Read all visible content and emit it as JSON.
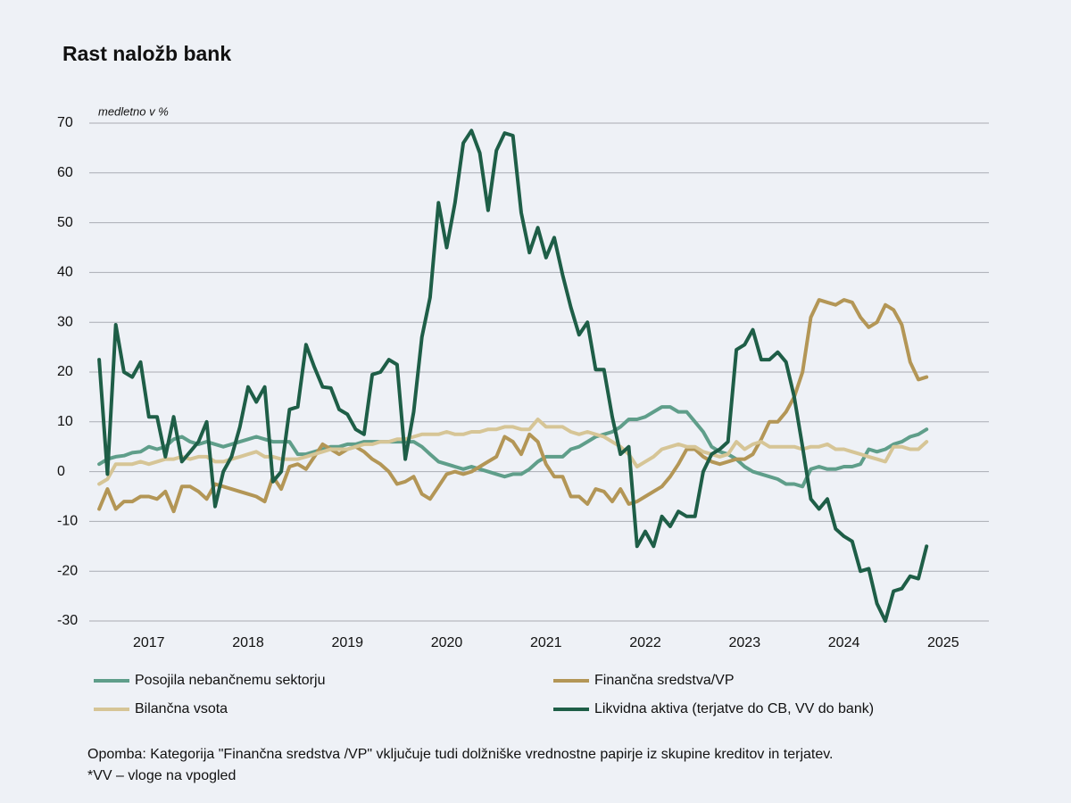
{
  "chart_data": {
    "type": "line",
    "title": "Rast naložb bank",
    "y_label": "medletno v %",
    "notes": [
      "Opomba: Kategorija \"Finančna sredstva /VP\" vključuje tudi dolžniške vrednostne papirje iz skupine kreditov in terjatev.",
      "*VV – vloge na vpogled"
    ],
    "xlim": [
      2016.4,
      2025.46
    ],
    "xticks": [
      2017,
      2018,
      2019,
      2020,
      2021,
      2022,
      2023,
      2024,
      2025
    ],
    "ylim": [
      -30,
      70
    ],
    "yticks": [
      -30,
      -20,
      -10,
      0,
      10,
      20,
      30,
      40,
      50,
      60,
      70
    ],
    "grid": true,
    "x": [
      2016.5,
      2016.583,
      2016.667,
      2016.75,
      2016.833,
      2016.917,
      2017,
      2017.083,
      2017.167,
      2017.25,
      2017.333,
      2017.417,
      2017.5,
      2017.583,
      2017.667,
      2017.75,
      2017.833,
      2017.917,
      2018,
      2018.083,
      2018.167,
      2018.25,
      2018.333,
      2018.417,
      2018.5,
      2018.583,
      2018.667,
      2018.75,
      2018.833,
      2018.917,
      2019,
      2019.083,
      2019.167,
      2019.25,
      2019.333,
      2019.417,
      2019.5,
      2019.583,
      2019.667,
      2019.75,
      2019.833,
      2019.917,
      2020,
      2020.083,
      2020.167,
      2020.25,
      2020.333,
      2020.417,
      2020.5,
      2020.583,
      2020.667,
      2020.75,
      2020.833,
      2020.917,
      2021,
      2021.083,
      2021.167,
      2021.25,
      2021.333,
      2021.417,
      2021.5,
      2021.583,
      2021.667,
      2021.75,
      2021.833,
      2021.917,
      2022,
      2022.083,
      2022.167,
      2022.25,
      2022.333,
      2022.417,
      2022.5,
      2022.583,
      2022.667,
      2022.75,
      2022.833,
      2022.917,
      2023,
      2023.083,
      2023.167,
      2023.25,
      2023.333,
      2023.417,
      2023.5,
      2023.583,
      2023.667,
      2023.75,
      2023.833,
      2023.917,
      2024,
      2024.083,
      2024.167,
      2024.25,
      2024.333,
      2024.417,
      2024.5,
      2024.583,
      2024.667,
      2024.75,
      2024.833
    ],
    "series": [
      {
        "name": "Posojila nebančnemu sektorju",
        "color": "#5f9e8a",
        "values": [
          1.5,
          2.5,
          3,
          3.2,
          3.8,
          4,
          5,
          4.5,
          5,
          6.5,
          7,
          6,
          5.5,
          6,
          5.5,
          5,
          5.5,
          6,
          6.5,
          7,
          6.5,
          6,
          6,
          6,
          3.5,
          3.5,
          4,
          4.5,
          5,
          5,
          5.5,
          5.5,
          6,
          6,
          6,
          6,
          6,
          6,
          6,
          5,
          3.5,
          2,
          1.5,
          1,
          0.5,
          1,
          0.5,
          0,
          -0.5,
          -1,
          -0.5,
          -0.5,
          0.5,
          2,
          3,
          3,
          3,
          4.5,
          5,
          6,
          7,
          7.5,
          8,
          9,
          10.5,
          10.5,
          11,
          12,
          13,
          13,
          12,
          12,
          10,
          8,
          5,
          4,
          3.5,
          2.5,
          1,
          0,
          -0.5,
          -1,
          -1.5,
          -2.5,
          -2.5,
          -3,
          0.5,
          1,
          0.5,
          0.5,
          1,
          1,
          1.5,
          4.5,
          4,
          4.5,
          5.5,
          6,
          7,
          7.5,
          8.5
        ]
      },
      {
        "name": "Finančna sredstva/VP",
        "color": "#b39656",
        "values": [
          -7.5,
          -3.5,
          -7.5,
          -6,
          -6,
          -5,
          -5,
          -5.5,
          -4,
          -8,
          -3,
          -3,
          -4,
          -5.5,
          -2.5,
          -3,
          -3.5,
          -4,
          -4.5,
          -5,
          -6,
          -1,
          -3.5,
          1,
          1.5,
          0.5,
          3,
          5.5,
          4.5,
          3.5,
          4.5,
          5,
          4,
          2.5,
          1.5,
          0,
          -2.5,
          -2,
          -1,
          -4.5,
          -5.5,
          -3,
          -0.5,
          0,
          -0.5,
          0,
          1,
          2,
          3,
          7,
          6,
          3.5,
          7.5,
          6,
          1.5,
          -1,
          -1,
          -5,
          -5,
          -6.5,
          -3.5,
          -4,
          -6,
          -3.5,
          -6.5,
          -6,
          -5,
          -4,
          -3,
          -1,
          1.5,
          4.5,
          4.5,
          3,
          2,
          1.5,
          2,
          2.5,
          2.5,
          3.5,
          6.5,
          10,
          10,
          12,
          15,
          20,
          31,
          34.5,
          34,
          33.5,
          34.5,
          34,
          31,
          29,
          30,
          33.5,
          32.5,
          29.5,
          22,
          18.5,
          19
        ]
      },
      {
        "name": "Bilančna vsota",
        "color": "#d6c596",
        "values": [
          -2.5,
          -1.5,
          1.5,
          1.5,
          1.5,
          2,
          1.5,
          2,
          2.5,
          2.5,
          3,
          2.5,
          3,
          3,
          2,
          2,
          2.5,
          3,
          3.5,
          4,
          3,
          3,
          2.5,
          2.5,
          2.5,
          3,
          3.5,
          4,
          4.5,
          4.5,
          4.5,
          5,
          5.5,
          5.5,
          6,
          6,
          6.5,
          6.5,
          7,
          7.5,
          7.5,
          7.5,
          8,
          7.5,
          7.5,
          8,
          8,
          8.5,
          8.5,
          9,
          9,
          8.5,
          8.5,
          10.5,
          9,
          9,
          9,
          8,
          7.5,
          8,
          7.5,
          7,
          6,
          5,
          3.5,
          1,
          2,
          3,
          4.5,
          5,
          5.5,
          5,
          5,
          4,
          3.5,
          3,
          3.5,
          6,
          4.5,
          5.5,
          6,
          5,
          5,
          5,
          5,
          4.5,
          5,
          5,
          5.5,
          4.5,
          4.5,
          4,
          3.5,
          3,
          2.5,
          2,
          5,
          5,
          4.5,
          4.5,
          6
        ]
      },
      {
        "name": "Likvidna aktiva (terjatve do CB, VV do bank)",
        "color": "#1e5e47",
        "values": [
          22.5,
          -0.5,
          29.5,
          20,
          19,
          22,
          11,
          11,
          3,
          11,
          2,
          4,
          6,
          10,
          -7,
          0,
          3,
          9,
          17,
          14,
          17,
          -2,
          0,
          12.5,
          13,
          25.5,
          21,
          17,
          16.8,
          12.5,
          11.5,
          8.5,
          7.5,
          19.5,
          20,
          22.5,
          21.5,
          2.5,
          12,
          27,
          35,
          54,
          45,
          54,
          66,
          68.5,
          64,
          52.5,
          64.5,
          68,
          67.5,
          52,
          44,
          49,
          43,
          47,
          39.5,
          33,
          27.5,
          30,
          20.5,
          20.5,
          11,
          3.5,
          5,
          -15,
          -12,
          -15,
          -9,
          -11,
          -8,
          -9,
          -9,
          0,
          3.5,
          4.5,
          6,
          24.5,
          25.5,
          28.5,
          22.5,
          22.5,
          24,
          22,
          15,
          5,
          -5.5,
          -7.5,
          -5.5,
          -11.5,
          -13,
          -14,
          -20,
          -19.5,
          -26.5,
          -30,
          -24,
          -23.5,
          -21,
          -21.5,
          -15
        ]
      }
    ]
  }
}
